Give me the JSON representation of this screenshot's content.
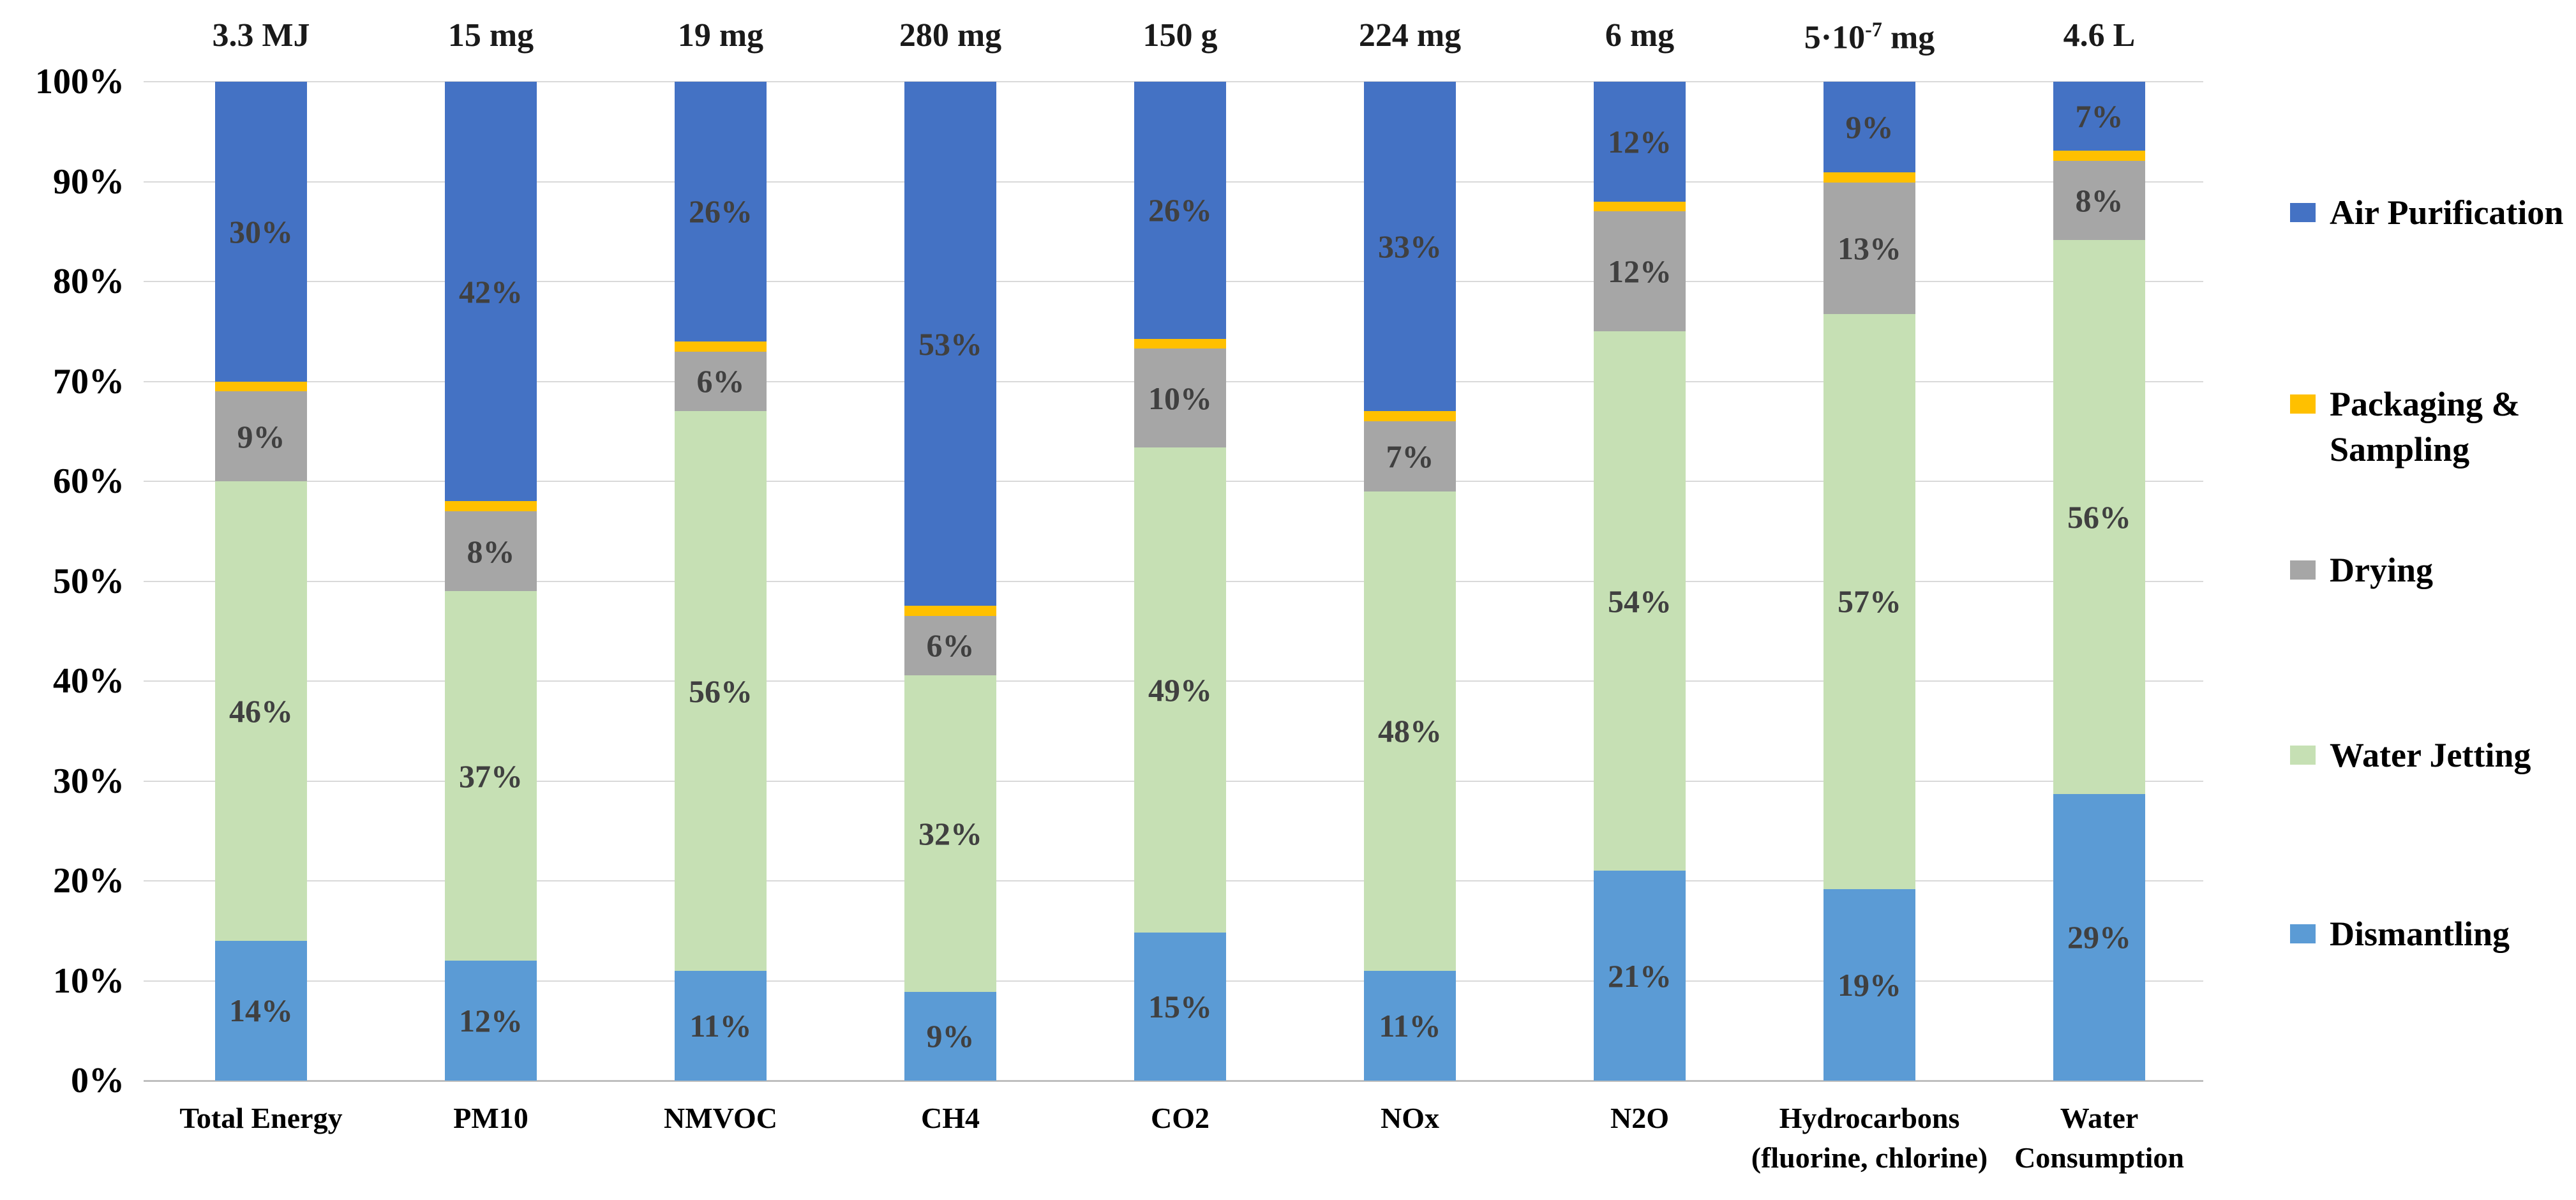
{
  "figure": {
    "background": "#FFFFFF",
    "description_title": "Relative contribution of process steps per impact category (100% stacked bars)"
  },
  "chart_data": {
    "type": "bar",
    "stacked": true,
    "percent_stacked": true,
    "grid": true,
    "legend_position": "right",
    "label_color": "#404040",
    "gridline_color": "#D9D9D9",
    "axisline_color": "#BFBFBF",
    "y_axis": {
      "min": 0,
      "max": 100,
      "ticks": [
        "100%",
        "90%",
        "80%",
        "70%",
        "60%",
        "50%",
        "40%",
        "30%",
        "20%",
        "10%",
        "0%"
      ]
    },
    "categories": [
      {
        "label_lines": [
          "Total Energy"
        ],
        "amount": "3.3 MJ"
      },
      {
        "label_lines": [
          "PM10"
        ],
        "amount": "15 mg"
      },
      {
        "label_lines": [
          "NMVOC"
        ],
        "amount": "19 mg"
      },
      {
        "label_lines": [
          "CH4"
        ],
        "amount": "280 mg"
      },
      {
        "label_lines": [
          "CO2"
        ],
        "amount": "150 g"
      },
      {
        "label_lines": [
          "NOx"
        ],
        "amount": "224 mg"
      },
      {
        "label_lines": [
          "N2O"
        ],
        "amount": "6 mg"
      },
      {
        "label_lines": [
          "Hydrocarbons",
          "(fluorine, chlorine)"
        ],
        "amount": "5·10^-7 mg"
      },
      {
        "label_lines": [
          "Water",
          "Consumption"
        ],
        "amount": "4.6 L"
      }
    ],
    "series": [
      {
        "name": "Dismantling",
        "color": "#5B9BD5",
        "show_labels": true,
        "values": [
          14,
          12,
          11,
          9,
          15,
          11,
          21,
          19,
          29
        ],
        "labels": [
          "14%",
          "12%",
          "11%",
          "9%",
          "15%",
          "11%",
          "21%",
          "19%",
          "29%"
        ]
      },
      {
        "name": "Water Jetting",
        "color": "#C6E0B4",
        "show_labels": true,
        "values": [
          46,
          37,
          56,
          32,
          49,
          48,
          54,
          57,
          56
        ],
        "labels": [
          "46%",
          "37%",
          "56%",
          "32%",
          "49%",
          "48%",
          "54%",
          "57%",
          "56%"
        ]
      },
      {
        "name": "Drying",
        "color": "#A6A6A6",
        "show_labels": true,
        "values": [
          9,
          8,
          6,
          6,
          10,
          7,
          12,
          13,
          8
        ],
        "labels": [
          "9%",
          "8%",
          "6%",
          "6%",
          "10%",
          "7%",
          "12%",
          "13%",
          "8%"
        ]
      },
      {
        "name": "Packaging & Sampling",
        "color": "#FFC000",
        "show_labels": false,
        "values": [
          1,
          1,
          1,
          1,
          1,
          1,
          1,
          1,
          1
        ],
        "labels": [
          "",
          "",
          "",
          "",
          "",
          "",
          "",
          "",
          ""
        ]
      },
      {
        "name": "Air Purification",
        "color": "#4472C4",
        "show_labels": true,
        "values": [
          30,
          42,
          26,
          53,
          26,
          33,
          12,
          9,
          7
        ],
        "labels": [
          "30%",
          "42%",
          "26%",
          "53%",
          "26%",
          "33%",
          "12%",
          "9%",
          "7%"
        ]
      }
    ],
    "legend_order_top_to_bottom": [
      "Air Purification",
      "Packaging & Sampling",
      "Drying",
      "Water Jetting",
      "Dismantling"
    ]
  }
}
